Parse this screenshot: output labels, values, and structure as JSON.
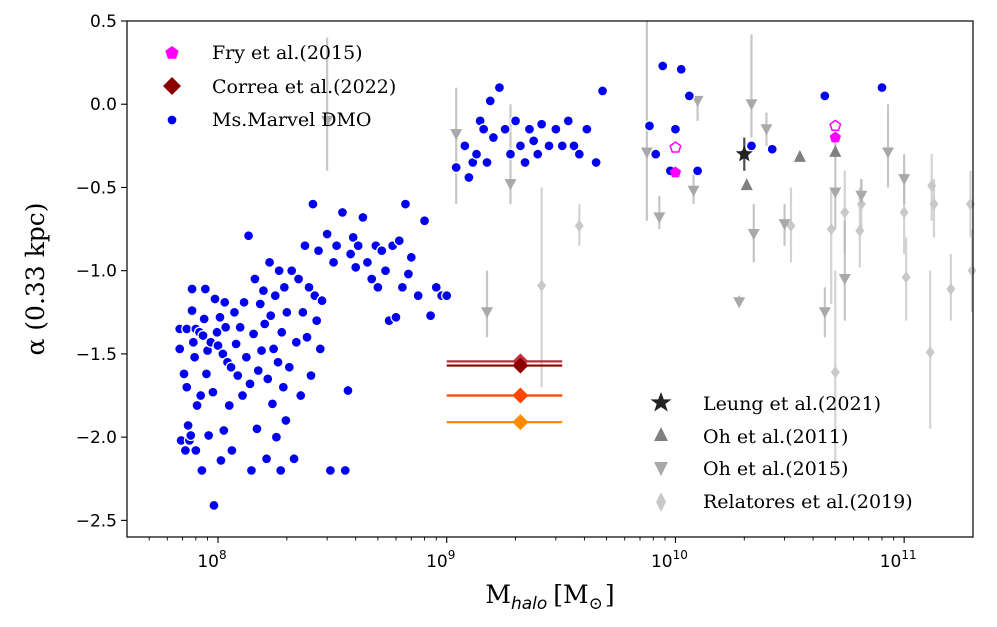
{
  "chart_data": {
    "type": "scatter",
    "xlabel": "M_halo [M_⊙]",
    "xlabel_main": "M",
    "xlabel_sub": "halo",
    "xlabel_unit": "[M",
    "xlabel_sun": "⊙",
    "xlabel_close": "]",
    "ylabel": "α (0.33 kpc)",
    "x_scale": "log",
    "xlim": [
      40000000.0,
      200000000000.0
    ],
    "ylim": [
      -2.6,
      0.5
    ],
    "grid": false,
    "x_tick_labels": [
      {
        "value": 100000000.0,
        "base": "10",
        "exp": "8"
      },
      {
        "value": 1000000000.0,
        "base": "10",
        "exp": "9"
      },
      {
        "value": 10000000000.0,
        "base": "10",
        "exp": "10"
      },
      {
        "value": 100000000000.0,
        "base": "10",
        "exp": "11"
      }
    ],
    "y_ticks": [
      0.5,
      0.0,
      -0.5,
      -1.0,
      -1.5,
      -2.0,
      -2.5
    ],
    "y_tick_labels": [
      "0.5",
      "0.0",
      "−0.5",
      "−1.0",
      "−1.5",
      "−2.0",
      "−2.5"
    ],
    "legend_top_left": [
      "Fry et al.(2015)",
      "Correa et al.(2022)",
      "Ms.Marvel DMO"
    ],
    "legend_bottom_right": [
      "Leung et al.(2021)",
      "Oh et al.(2011)",
      "Oh et al.(2015)",
      "Relatores et al.(2019)"
    ],
    "series": [
      {
        "name": "Ms.Marvel DMO",
        "color": "#0000ee",
        "points": [
          [
            68000000.0,
            -1.35
          ],
          [
            68000000.0,
            -1.47
          ],
          [
            69000000.0,
            -2.02
          ],
          [
            71000000.0,
            -1.62
          ],
          [
            72000000.0,
            -2.08
          ],
          [
            73000000.0,
            -1.7
          ],
          [
            73000000.0,
            -1.35
          ],
          [
            74000000.0,
            -1.93
          ],
          [
            75000000.0,
            -2.02
          ],
          [
            76000000.0,
            -1.99
          ],
          [
            77000000.0,
            -1.24
          ],
          [
            77000000.0,
            -1.11
          ],
          [
            78000000.0,
            -1.43
          ],
          [
            79000000.0,
            -1.52
          ],
          [
            80000000.0,
            -1.35
          ],
          [
            80000000.0,
            -2.08
          ],
          [
            81000000.0,
            -1.81
          ],
          [
            83000000.0,
            -1.37
          ],
          [
            84000000.0,
            -1.75
          ],
          [
            85000000.0,
            -2.2
          ],
          [
            86000000.0,
            -1.39
          ],
          [
            87000000.0,
            -1.29
          ],
          [
            88000000.0,
            -1.11
          ],
          [
            89000000.0,
            -1.62
          ],
          [
            90000000.0,
            -1.48
          ],
          [
            91000000.0,
            -1.99
          ],
          [
            93000000.0,
            -1.43
          ],
          [
            95000000.0,
            -1.73
          ],
          [
            96000000.0,
            -2.41
          ],
          [
            97000000.0,
            -1.17
          ],
          [
            99000000.0,
            -1.37
          ],
          [
            100000000.0,
            -1.45
          ],
          [
            102000000.0,
            -1.28
          ],
          [
            103000000.0,
            -2.14
          ],
          [
            105000000.0,
            -1.5
          ],
          [
            106000000.0,
            -1.96
          ],
          [
            107000000.0,
            -1.19
          ],
          [
            108000000.0,
            -1.34
          ],
          [
            110000000.0,
            -1.55
          ],
          [
            112000000.0,
            -1.81
          ],
          [
            114000000.0,
            -1.58
          ],
          [
            115000000.0,
            -2.08
          ],
          [
            118000000.0,
            -1.25
          ],
          [
            120000000.0,
            -1.44
          ],
          [
            122000000.0,
            -1.63
          ],
          [
            125000000.0,
            -1.34
          ],
          [
            128000000.0,
            -1.75
          ],
          [
            130000000.0,
            -1.19
          ],
          [
            133000000.0,
            -1.52
          ],
          [
            136000000.0,
            -0.79
          ],
          [
            138000000.0,
            -1.68
          ],
          [
            140000000.0,
            -2.2
          ],
          [
            143000000.0,
            -1.38
          ],
          [
            145000000.0,
            -1.05
          ],
          [
            148000000.0,
            -1.95
          ],
          [
            150000000.0,
            -1.6
          ],
          [
            153000000.0,
            -1.2
          ],
          [
            155000000.0,
            -1.48
          ],
          [
            158000000.0,
            -1.12
          ],
          [
            160000000.0,
            -1.32
          ],
          [
            163000000.0,
            -2.13
          ],
          [
            165000000.0,
            -1.65
          ],
          [
            168000000.0,
            -0.95
          ],
          [
            170000000.0,
            -1.27
          ],
          [
            173000000.0,
            -1.8
          ],
          [
            175000000.0,
            -1.47
          ],
          [
            178000000.0,
            -1.15
          ],
          [
            180000000.0,
            -2.0
          ],
          [
            183000000.0,
            -1.55
          ],
          [
            185000000.0,
            -1.0
          ],
          [
            188000000.0,
            -2.2
          ],
          [
            190000000.0,
            -1.37
          ],
          [
            193000000.0,
            -1.7
          ],
          [
            195000000.0,
            -1.1
          ],
          [
            198000000.0,
            -1.9
          ],
          [
            200000000.0,
            -1.25
          ],
          [
            205000000.0,
            -1.58
          ],
          [
            210000000.0,
            -1.0
          ],
          [
            215000000.0,
            -2.13
          ],
          [
            220000000.0,
            -1.43
          ],
          [
            225000000.0,
            -1.05
          ],
          [
            230000000.0,
            -1.75
          ],
          [
            235000000.0,
            -1.25
          ],
          [
            240000000.0,
            -0.85
          ],
          [
            245000000.0,
            -1.4
          ],
          [
            250000000.0,
            -1.1
          ],
          [
            255000000.0,
            -1.63
          ],
          [
            260000000.0,
            -0.6
          ],
          [
            265000000.0,
            -1.15
          ],
          [
            270000000.0,
            -1.3
          ],
          [
            275000000.0,
            -0.88
          ],
          [
            280000000.0,
            -1.47
          ],
          [
            285000000.0,
            -1.18
          ],
          [
            300000000.0,
            -0.78
          ],
          [
            310000000.0,
            -2.2
          ],
          [
            320000000.0,
            -0.95
          ],
          [
            330000000.0,
            -0.85
          ],
          [
            350000000.0,
            -0.65
          ],
          [
            360000000.0,
            -2.2
          ],
          [
            370000000.0,
            -1.72
          ],
          [
            380000000.0,
            -0.9
          ],
          [
            390000000.0,
            -0.8
          ],
          [
            400000000.0,
            -0.98
          ],
          [
            410000000.0,
            -0.85
          ],
          [
            430000000.0,
            -0.68
          ],
          [
            450000000.0,
            -0.95
          ],
          [
            470000000.0,
            -1.05
          ],
          [
            490000000.0,
            -0.85
          ],
          [
            500000000.0,
            -1.1
          ],
          [
            520000000.0,
            -0.88
          ],
          [
            540000000.0,
            -1.0
          ],
          [
            560000000.0,
            -1.3
          ],
          [
            580000000.0,
            -0.85
          ],
          [
            600000000.0,
            -1.28
          ],
          [
            620000000.0,
            -0.82
          ],
          [
            640000000.0,
            -1.1
          ],
          [
            660000000.0,
            -0.6
          ],
          [
            680000000.0,
            -1.02
          ],
          [
            700000000.0,
            -0.92
          ],
          [
            750000000.0,
            -1.15
          ],
          [
            800000000.0,
            -0.7
          ],
          [
            850000000.0,
            -1.27
          ],
          [
            900000000.0,
            -1.1
          ],
          [
            950000000.0,
            -1.15
          ],
          [
            1000000000.0,
            -1.15
          ],
          [
            1100000000.0,
            -0.38
          ],
          [
            1200000000.0,
            -0.25
          ],
          [
            1250000000.0,
            -0.44
          ],
          [
            1300000000.0,
            -0.35
          ],
          [
            1350000000.0,
            -0.3
          ],
          [
            1400000000.0,
            -0.1
          ],
          [
            1450000000.0,
            -0.15
          ],
          [
            1500000000.0,
            -0.35
          ],
          [
            1550000000.0,
            0.02
          ],
          [
            1600000000.0,
            -0.2
          ],
          [
            1700000000.0,
            0.1
          ],
          [
            1800000000.0,
            -0.15
          ],
          [
            1900000000.0,
            -0.3
          ],
          [
            2000000000.0,
            -0.1
          ],
          [
            2100000000.0,
            -0.25
          ],
          [
            2200000000.0,
            -0.35
          ],
          [
            2300000000.0,
            -0.15
          ],
          [
            2400000000.0,
            -0.22
          ],
          [
            2500000000.0,
            -0.3
          ],
          [
            2600000000.0,
            -0.12
          ],
          [
            2800000000.0,
            -0.25
          ],
          [
            3000000000.0,
            -0.15
          ],
          [
            3200000000.0,
            -0.25
          ],
          [
            3400000000.0,
            -0.1
          ],
          [
            3600000000.0,
            -0.25
          ],
          [
            3800000000.0,
            -0.3
          ],
          [
            4100000000.0,
            -0.15
          ],
          [
            4500000000.0,
            -0.35
          ],
          [
            4800000000.0,
            0.08
          ],
          [
            7700000000.0,
            -0.13
          ],
          [
            8200000000.0,
            -0.3
          ],
          [
            8800000000.0,
            0.23
          ],
          [
            9500000000.0,
            -0.4
          ],
          [
            10000000000.0,
            -0.15
          ],
          [
            10600000000.0,
            0.21
          ],
          [
            11500000000.0,
            0.05
          ],
          [
            12500000000.0,
            -0.4
          ],
          [
            20000000000.0,
            -0.3
          ],
          [
            21500000000.0,
            -0.25
          ],
          [
            26500000000.0,
            -0.27
          ],
          [
            45000000000.0,
            0.05
          ],
          [
            80000000000.0,
            0.1
          ]
        ]
      },
      {
        "name": "Fry et al.(2015)",
        "color": "#ff00ff",
        "filled": [
          [
            10000000000.0,
            -0.41
          ],
          [
            50000000000.0,
            -0.2
          ]
        ],
        "open": [
          [
            10000000000.0,
            -0.26
          ],
          [
            50000000000.0,
            -0.13
          ]
        ]
      },
      {
        "name": "Correa et al.(2022)",
        "points": [
          {
            "x": 2100000000.0,
            "xmin": 1000000000.0,
            "xmax": 3200000000.0,
            "y": -1.545,
            "color": "#c0303a"
          },
          {
            "x": 2100000000.0,
            "xmin": 1000000000.0,
            "xmax": 3200000000.0,
            "y": -1.57,
            "color": "#8b0000"
          },
          {
            "x": 2100000000.0,
            "xmin": 1000000000.0,
            "xmax": 3200000000.0,
            "y": -1.75,
            "color": "#ff4500"
          },
          {
            "x": 2100000000.0,
            "xmin": 1000000000.0,
            "xmax": 3200000000.0,
            "y": -1.91,
            "color": "#ff8c00"
          }
        ]
      },
      {
        "name": "Leung et al.(2021)",
        "color": "#222222",
        "points": [
          {
            "x": 20000000000.0,
            "y": -0.3,
            "ylo": -0.4,
            "yhi": -0.2
          }
        ]
      },
      {
        "name": "Oh et al.(2011)",
        "color": "#808080",
        "points": [
          [
            20500000000.0,
            -0.48
          ],
          [
            35000000000.0,
            -0.31
          ],
          [
            50000000000.0,
            -0.28
          ]
        ]
      },
      {
        "name": "Oh et al.(2015)",
        "color": "#a9a9a9",
        "points": [
          {
            "x": 300000000.0,
            "y": -0.1,
            "ylo": -0.4,
            "yhi": 0.4
          },
          {
            "x": 1100000000.0,
            "y": -0.18,
            "ylo": -0.6,
            "yhi": 0.1
          },
          {
            "x": 1500000000.0,
            "y": -1.25,
            "ylo": -1.4,
            "yhi": -1.0
          },
          {
            "x": 1900000000.0,
            "y": -0.48,
            "ylo": -0.6,
            "yhi": 0.0
          },
          {
            "x": 7500000000.0,
            "y": -0.29,
            "ylo": -0.7,
            "yhi": 0.5
          },
          {
            "x": 8500000000.0,
            "y": -0.68,
            "ylo": -0.75,
            "yhi": -0.55
          },
          {
            "x": 12000000000.0,
            "y": -0.52,
            "ylo": -0.6,
            "yhi": -0.4
          },
          {
            "x": 12500000000.0,
            "y": 0.02,
            "ylo": -0.1,
            "yhi": 0.05
          },
          {
            "x": 19000000000.0,
            "y": -1.19,
            "ylo": -1.2,
            "yhi": -1.15
          },
          {
            "x": 21500000000.0,
            "y": 0.0,
            "ylo": -0.2,
            "yhi": 0.42
          },
          {
            "x": 22000000000.0,
            "y": -0.78,
            "ylo": -0.95,
            "yhi": -0.6
          },
          {
            "x": 25000000000.0,
            "y": -0.15,
            "ylo": -0.25,
            "yhi": -0.05
          },
          {
            "x": 30000000000.0,
            "y": -0.72,
            "ylo": -0.85,
            "yhi": -0.6
          },
          {
            "x": 45000000000.0,
            "y": -1.25,
            "ylo": -1.4,
            "yhi": -1.1
          },
          {
            "x": 50000000000.0,
            "y": -0.53,
            "ylo": -0.75,
            "yhi": -0.2
          },
          {
            "x": 55000000000.0,
            "y": -1.05,
            "ylo": -1.3,
            "yhi": -0.7
          },
          {
            "x": 65000000000.0,
            "y": -0.55,
            "ylo": -0.6,
            "yhi": -0.45
          },
          {
            "x": 85000000000.0,
            "y": -0.29,
            "ylo": -0.5,
            "yhi": 0.0
          },
          {
            "x": 100000000000.0,
            "y": -0.45,
            "ylo": -0.6,
            "yhi": -0.3
          }
        ]
      },
      {
        "name": "Relatores et al.(2019)",
        "color": "#c8c8c8",
        "points": [
          {
            "x": 2600000000.0,
            "y": -1.09,
            "ylo": -1.7,
            "yhi": -0.5
          },
          {
            "x": 3800000000.0,
            "y": -0.73,
            "ylo": -0.85,
            "yhi": -0.6
          },
          {
            "x": 32000000000.0,
            "y": -0.73,
            "ylo": -0.95,
            "yhi": -0.5
          },
          {
            "x": 48000000000.0,
            "y": -0.75,
            "ylo": -1.2,
            "yhi": -0.5
          },
          {
            "x": 50000000000.0,
            "y": -1.61,
            "ylo": -2.2,
            "yhi": -1.0
          },
          {
            "x": 55000000000.0,
            "y": -0.65,
            "ylo": -0.9,
            "yhi": -0.4
          },
          {
            "x": 64000000000.0,
            "y": -0.76,
            "ylo": -0.98,
            "yhi": -0.5
          },
          {
            "x": 65000000000.0,
            "y": -0.6,
            "ylo": -0.75,
            "yhi": -0.45
          },
          {
            "x": 100000000000.0,
            "y": -0.65,
            "ylo": -0.9,
            "yhi": -0.4
          },
          {
            "x": 102000000000.0,
            "y": -1.04,
            "ylo": -1.3,
            "yhi": -0.8
          },
          {
            "x": 130000000000.0,
            "y": -1.49,
            "ylo": -1.95,
            "yhi": -1.0
          },
          {
            "x": 132000000000.0,
            "y": -0.49,
            "ylo": -0.7,
            "yhi": -0.3
          },
          {
            "x": 135000000000.0,
            "y": -0.6,
            "ylo": -0.8,
            "yhi": -0.45
          },
          {
            "x": 160000000000.0,
            "y": -1.11,
            "ylo": -1.3,
            "yhi": -0.9
          },
          {
            "x": 195000000000.0,
            "y": -0.6,
            "ylo": -0.8,
            "yhi": -0.4
          },
          {
            "x": 198000000000.0,
            "y": -1.0,
            "ylo": -1.25,
            "yhi": -0.75
          }
        ]
      }
    ]
  }
}
